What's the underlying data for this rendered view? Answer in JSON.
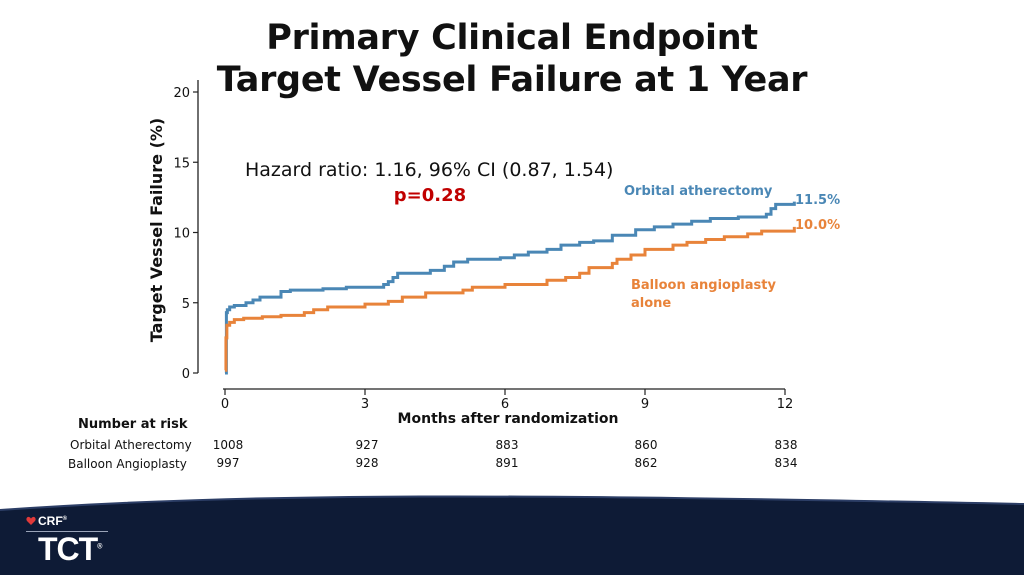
{
  "title_line1": "Primary Clinical Endpoint",
  "title_line2": "Target Vessel Failure at 1 Year",
  "annotation_hr": "Hazard ratio: 1.16, 96% CI (0.87, 1.54)",
  "annotation_p": "p=0.28",
  "logo": {
    "crf": "CRF",
    "crf_reg": "®",
    "tct": "TCT",
    "tct_reg": "®"
  },
  "colors": {
    "orbital": "#4a87b5",
    "balloon": "#e8833a",
    "pvalue": "#c00000",
    "footer": "#0e1b36"
  },
  "risk_table": {
    "title": "Number at risk",
    "rows": [
      {
        "label": "Orbital Atherectomy",
        "values": [
          "1008",
          "927",
          "883",
          "860",
          "838"
        ]
      },
      {
        "label": "Balloon Angioplasty",
        "values": [
          "997",
          "928",
          "891",
          "862",
          "834"
        ]
      }
    ]
  },
  "chart_data": {
    "type": "line",
    "xlabel": "Months after randomization",
    "ylabel": "Target Vessel Failure (%)",
    "xlim": [
      0,
      12
    ],
    "ylim": [
      0,
      20
    ],
    "xticks": [
      0,
      3,
      6,
      9,
      12
    ],
    "yticks": [
      0,
      5,
      10,
      15,
      20
    ],
    "grid": false,
    "series": [
      {
        "name": "Orbital atherectomy",
        "end_label": "11.5%",
        "x": [
          0,
          0.03,
          0.05,
          0.1,
          0.2,
          0.45,
          0.6,
          0.75,
          1.2,
          1.4,
          2.1,
          2.6,
          3.4,
          3.5,
          3.6,
          3.7,
          4.4,
          4.7,
          4.9,
          5.2,
          5.9,
          6.2,
          6.5,
          6.9,
          7.2,
          7.6,
          7.9,
          8.3,
          8.8,
          9.2,
          9.6,
          10.0,
          10.4,
          11.0,
          11.6,
          11.7,
          11.8,
          12.2
        ],
        "y": [
          0,
          4.3,
          4.5,
          4.7,
          4.8,
          5.0,
          5.2,
          5.4,
          5.8,
          5.9,
          6.0,
          6.1,
          6.3,
          6.5,
          6.8,
          7.1,
          7.3,
          7.6,
          7.9,
          8.1,
          8.2,
          8.4,
          8.6,
          8.8,
          9.1,
          9.3,
          9.4,
          9.8,
          10.2,
          10.4,
          10.6,
          10.8,
          11.0,
          11.1,
          11.3,
          11.7,
          12.0,
          12.2
        ]
      },
      {
        "name": "Balloon angioplasty alone",
        "end_label": "10.0%",
        "x": [
          0,
          0.02,
          0.04,
          0.1,
          0.2,
          0.4,
          0.8,
          1.2,
          1.7,
          1.9,
          2.2,
          3.0,
          3.5,
          3.8,
          4.3,
          5.1,
          5.3,
          6.0,
          6.9,
          7.3,
          7.6,
          7.8,
          8.3,
          8.4,
          8.7,
          9.0,
          9.6,
          9.9,
          10.3,
          10.7,
          11.2,
          11.5,
          12.2
        ],
        "y": [
          0.2,
          2.5,
          3.4,
          3.6,
          3.8,
          3.9,
          4.0,
          4.1,
          4.3,
          4.5,
          4.7,
          4.9,
          5.1,
          5.4,
          5.7,
          5.9,
          6.1,
          6.3,
          6.6,
          6.8,
          7.1,
          7.5,
          7.8,
          8.1,
          8.4,
          8.8,
          9.1,
          9.3,
          9.5,
          9.7,
          9.9,
          10.1,
          10.4
        ]
      }
    ],
    "series_labels": [
      {
        "series": 0,
        "text": "Orbital atherectomy"
      },
      {
        "series": 1,
        "text_lines": [
          "Balloon angioplasty",
          "alone"
        ]
      }
    ]
  }
}
